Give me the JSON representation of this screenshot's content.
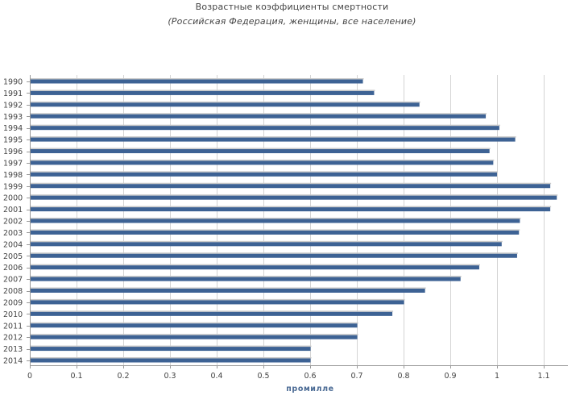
{
  "chart_data": {
    "type": "bar",
    "orientation": "horizontal",
    "title": "Возрастные коэффициенты смертности",
    "subtitle": "(Российская Федерация, женщины, все население)",
    "xlabel": "промилле",
    "ylabel": "",
    "xlim": [
      0,
      1.15
    ],
    "xticks": [
      "0",
      "0.1",
      "0.2",
      "0.3",
      "0.4",
      "0.5",
      "0.6",
      "0.7",
      "0.8",
      "0.9",
      "1",
      "1.1"
    ],
    "grid": true,
    "categories": [
      "1990",
      "1991",
      "1992",
      "1993",
      "1994",
      "1995",
      "1996",
      "1997",
      "1998",
      "1999",
      "2000",
      "2001",
      "2002",
      "2003",
      "2004",
      "2005",
      "2006",
      "2007",
      "2008",
      "2009",
      "2010",
      "2011",
      "2012",
      "2013",
      "2014"
    ],
    "values": [
      0.713,
      0.737,
      0.834,
      0.976,
      1.005,
      1.039,
      0.984,
      0.992,
      1.0,
      1.114,
      1.128,
      1.114,
      1.049,
      1.047,
      1.01,
      1.043,
      0.962,
      0.922,
      0.846,
      0.801,
      0.776,
      0.701,
      0.701,
      0.601,
      0.601
    ],
    "bar_color": "#3d6294",
    "grid_color": "#d4d4d4"
  }
}
